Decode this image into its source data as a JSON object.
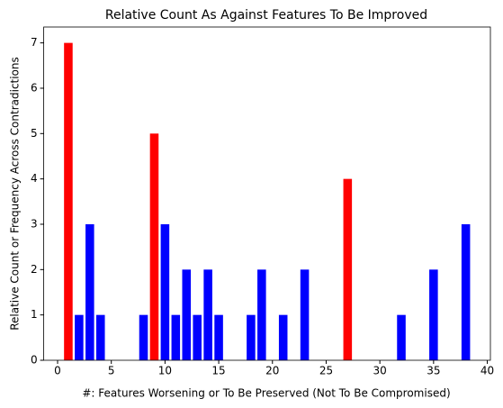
{
  "chart_data": {
    "type": "bar",
    "title": "Relative Count As Against Features To Be Improved",
    "x_label": "#: Features Worsening or To Be Preserved (Not To Be Compromised)",
    "y_label": "Relative Count or Frequency Across Contradictions",
    "x": [
      1,
      2,
      3,
      4,
      8,
      9,
      10,
      11,
      12,
      13,
      14,
      15,
      18,
      19,
      21,
      23,
      27,
      32,
      35,
      38
    ],
    "values": [
      7,
      1,
      3,
      1,
      1,
      5,
      3,
      1,
      2,
      1,
      2,
      1,
      1,
      2,
      1,
      2,
      4,
      1,
      2,
      3
    ],
    "colors": [
      "red",
      "blue",
      "blue",
      "blue",
      "blue",
      "red",
      "blue",
      "blue",
      "blue",
      "blue",
      "blue",
      "blue",
      "blue",
      "blue",
      "blue",
      "blue",
      "red",
      "blue",
      "blue",
      "blue"
    ],
    "bar_width": 0.8,
    "xlim": [
      -1.29,
      40.29
    ],
    "xticks": [
      0,
      5,
      10,
      15,
      20,
      25,
      30,
      35,
      40
    ],
    "ylim": [
      0,
      7.35
    ],
    "yticks": [
      0,
      1,
      2,
      3,
      4,
      5,
      6,
      7
    ],
    "grid": false
  }
}
